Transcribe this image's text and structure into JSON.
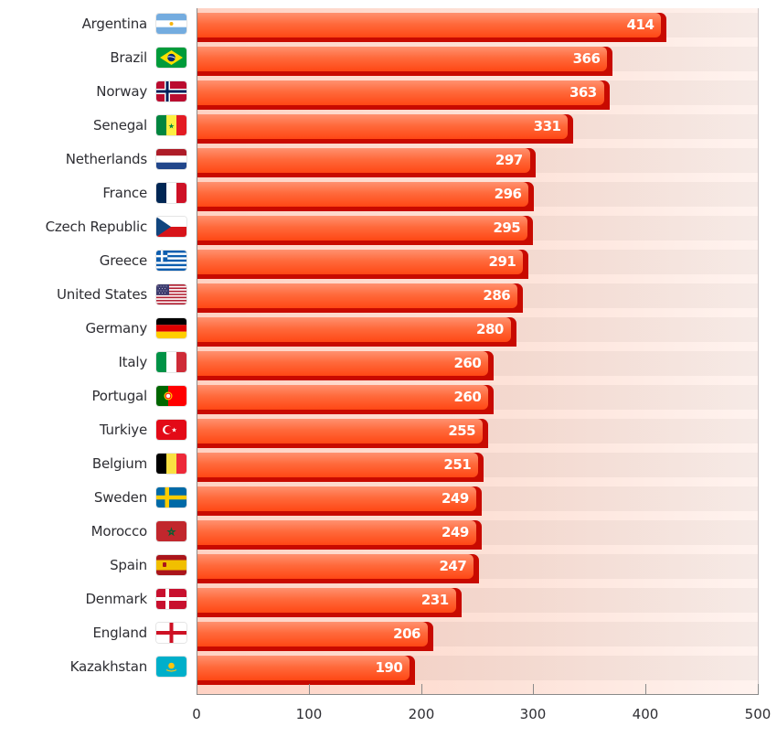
{
  "chart_data": {
    "type": "bar",
    "orientation": "horizontal",
    "title": "",
    "xlabel": "",
    "ylabel": "",
    "xlim": [
      0,
      500
    ],
    "xticks": [
      0,
      100,
      200,
      300,
      400,
      500
    ],
    "grid": false,
    "legend": null,
    "categories": [
      "Argentina",
      "Brazil",
      "Norway",
      "Senegal",
      "Netherlands",
      "France",
      "Czech Republic",
      "Greece",
      "United States",
      "Germany",
      "Italy",
      "Portugal",
      "Turkiye",
      "Belgium",
      "Sweden",
      "Morocco",
      "Spain",
      "Denmark",
      "England",
      "Kazakhstan"
    ],
    "values": [
      414,
      366,
      363,
      331,
      297,
      296,
      295,
      291,
      286,
      280,
      260,
      260,
      255,
      251,
      249,
      249,
      247,
      231,
      206,
      190
    ],
    "data_labels": true
  },
  "rows": [
    {
      "label": "Argentina",
      "value": "414",
      "flag": "argentina-flag-icon"
    },
    {
      "label": "Brazil",
      "value": "366",
      "flag": "brazil-flag-icon"
    },
    {
      "label": "Norway",
      "value": "363",
      "flag": "norway-flag-icon"
    },
    {
      "label": "Senegal",
      "value": "331",
      "flag": "senegal-flag-icon"
    },
    {
      "label": "Netherlands",
      "value": "297",
      "flag": "netherlands-flag-icon"
    },
    {
      "label": "France",
      "value": "296",
      "flag": "france-flag-icon"
    },
    {
      "label": "Czech Republic",
      "value": "295",
      "flag": "czech-republic-flag-icon"
    },
    {
      "label": "Greece",
      "value": "291",
      "flag": "greece-flag-icon"
    },
    {
      "label": "United States",
      "value": "286",
      "flag": "united-states-flag-icon"
    },
    {
      "label": "Germany",
      "value": "280",
      "flag": "germany-flag-icon"
    },
    {
      "label": "Italy",
      "value": "260",
      "flag": "italy-flag-icon"
    },
    {
      "label": "Portugal",
      "value": "260",
      "flag": "portugal-flag-icon"
    },
    {
      "label": "Turkiye",
      "value": "255",
      "flag": "turkiye-flag-icon"
    },
    {
      "label": "Belgium",
      "value": "251",
      "flag": "belgium-flag-icon"
    },
    {
      "label": "Sweden",
      "value": "249",
      "flag": "sweden-flag-icon"
    },
    {
      "label": "Morocco",
      "value": "249",
      "flag": "morocco-flag-icon"
    },
    {
      "label": "Spain",
      "value": "247",
      "flag": "spain-flag-icon"
    },
    {
      "label": "Denmark",
      "value": "231",
      "flag": "denmark-flag-icon"
    },
    {
      "label": "England",
      "value": "206",
      "flag": "england-flag-icon"
    },
    {
      "label": "Kazakhstan",
      "value": "190",
      "flag": "kazakhstan-flag-icon"
    }
  ],
  "x_axis": {
    "ticks": [
      "0",
      "100",
      "200",
      "300",
      "400",
      "500"
    ]
  },
  "colors": {
    "bar_top": "#ff9170",
    "bar_bottom": "#ff4714",
    "bar_shadow": "#c80a00",
    "plot_bg_left": "#ffd2c3",
    "plot_bg_right": "#fff3ef",
    "value_text": "#ffffff",
    "label_text": "#2e2e33"
  }
}
